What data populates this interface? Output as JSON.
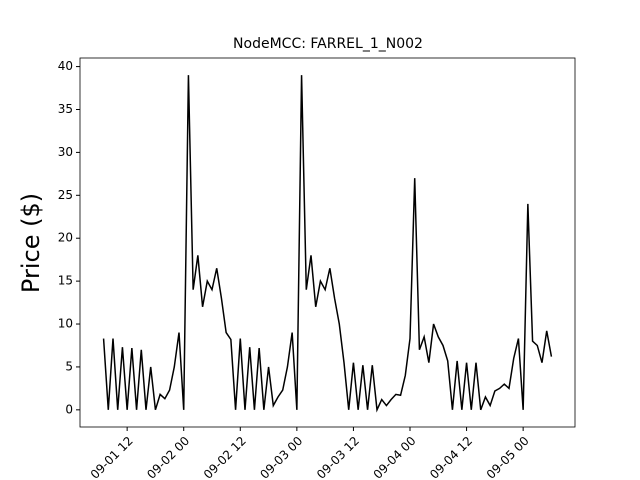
{
  "chart_data": {
    "type": "line",
    "title": "NodeMCC: FARREL_1_N002",
    "y_label": "Price ($)",
    "x": [
      "09-01 07",
      "09-01 08",
      "09-01 09",
      "09-01 10",
      "09-01 11",
      "09-01 12",
      "09-01 13",
      "09-01 14",
      "09-01 15",
      "09-01 16",
      "09-01 17",
      "09-01 18",
      "09-01 19",
      "09-01 20",
      "09-01 21",
      "09-01 22",
      "09-01 23",
      "09-02 00",
      "09-02 01",
      "09-02 02",
      "09-02 03",
      "09-02 04",
      "09-02 05",
      "09-02 06",
      "09-02 07",
      "09-02 08",
      "09-02 09",
      "09-02 10",
      "09-02 11",
      "09-02 12",
      "09-02 13",
      "09-02 14",
      "09-02 15",
      "09-02 16",
      "09-02 17",
      "09-02 18",
      "09-02 19",
      "09-02 20",
      "09-02 21",
      "09-02 22",
      "09-02 23",
      "09-03 00",
      "09-03 01",
      "09-03 02",
      "09-03 03",
      "09-03 04",
      "09-03 05",
      "09-03 06",
      "09-03 07",
      "09-03 08",
      "09-03 09",
      "09-03 10",
      "09-03 11",
      "09-03 12",
      "09-03 13",
      "09-03 14",
      "09-03 15",
      "09-03 16",
      "09-03 17",
      "09-03 18",
      "09-03 19",
      "09-03 20",
      "09-03 21",
      "09-03 22",
      "09-03 23",
      "09-04 00",
      "09-04 01",
      "09-04 02",
      "09-04 03",
      "09-04 04",
      "09-04 05",
      "09-04 06",
      "09-04 07",
      "09-04 08",
      "09-04 09",
      "09-04 10",
      "09-04 11",
      "09-04 12",
      "09-04 13",
      "09-04 14",
      "09-04 15",
      "09-04 16",
      "09-04 17",
      "09-04 18",
      "09-04 19",
      "09-04 20",
      "09-04 21",
      "09-04 22",
      "09-04 23",
      "09-05 00",
      "09-05 01",
      "09-05 02",
      "09-05 03",
      "09-05 04",
      "09-05 05",
      "09-05 06"
    ],
    "series": [
      {
        "name": "Price",
        "color": "#000000",
        "values": [
          8.3,
          0,
          8.3,
          0,
          7.3,
          0,
          7.2,
          0,
          7,
          0,
          5,
          0,
          1.8,
          1.3,
          2.3,
          5,
          9,
          0,
          39,
          14,
          18,
          12,
          15,
          14,
          16.5,
          13,
          9,
          8.2,
          0,
          8.3,
          0,
          7.3,
          0,
          7.2,
          0,
          5,
          0.5,
          1.5,
          2.3,
          5,
          9,
          0,
          39,
          14,
          18,
          12,
          15,
          14,
          16.5,
          13,
          10,
          5.5,
          0,
          5.5,
          0,
          5.2,
          0,
          5.2,
          0,
          1.2,
          0.5,
          1.2,
          1.8,
          1.7,
          4,
          8.3,
          27,
          7,
          8.5,
          5.5,
          10,
          8.5,
          7.5,
          5.7,
          0,
          5.7,
          0,
          5.5,
          0,
          5.5,
          0,
          1.5,
          0.5,
          2.2,
          2.5,
          3,
          2.5,
          6,
          8.3,
          0,
          24,
          8,
          7.5,
          5.5,
          9.2,
          6.2
        ]
      }
    ],
    "xlim": [
      "09-01 02",
      "09-05 11"
    ],
    "xticks": [
      "09-01 12",
      "09-02 00",
      "09-02 12",
      "09-03 00",
      "09-03 12",
      "09-04 00",
      "09-04 12",
      "09-05 00"
    ],
    "ylim": [
      -2,
      41
    ],
    "yticks": [
      0,
      5,
      10,
      15,
      20,
      25,
      30,
      35,
      40
    ],
    "grid": false
  }
}
